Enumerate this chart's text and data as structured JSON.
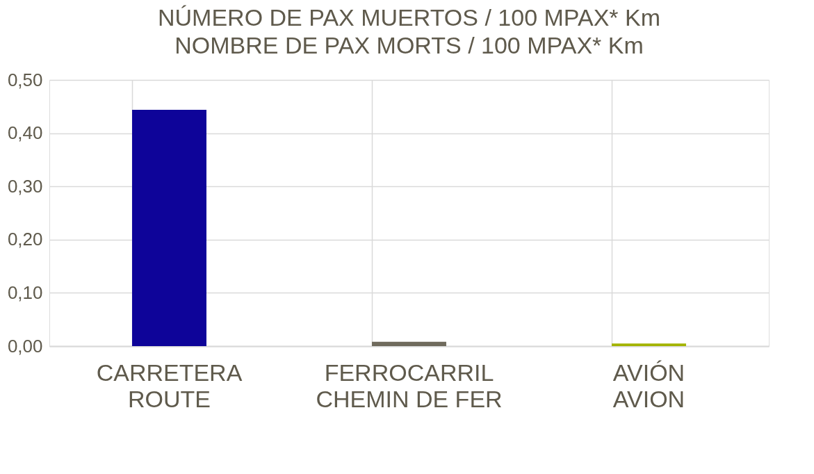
{
  "chart_data": {
    "type": "bar",
    "title": [
      "NÚMERO DE PAX MUERTOS / 100 MPAX* Km",
      "NOMBRE DE PAX MORTS / 100 MPAX* Km"
    ],
    "categories": [
      "CARRETERA\nROUTE",
      "FERROCARRIL\nCHEMIN DE FER",
      "AVIÓN\nAVION"
    ],
    "values": [
      0.444,
      0.008,
      0.005
    ],
    "colors": [
      "#0e0499",
      "#6f6a5c",
      "#a3b300"
    ],
    "ylim": [
      0,
      0.5
    ],
    "yticks": [
      {
        "value": 0,
        "label": "0,00"
      },
      {
        "value": 0.1,
        "label": "0,10"
      },
      {
        "value": 0.2,
        "label": "0,20"
      },
      {
        "value": 0.3,
        "label": "0,30"
      },
      {
        "value": 0.4,
        "label": "0,40"
      },
      {
        "value": 0.5,
        "label": "0,50"
      }
    ],
    "grid": true
  }
}
